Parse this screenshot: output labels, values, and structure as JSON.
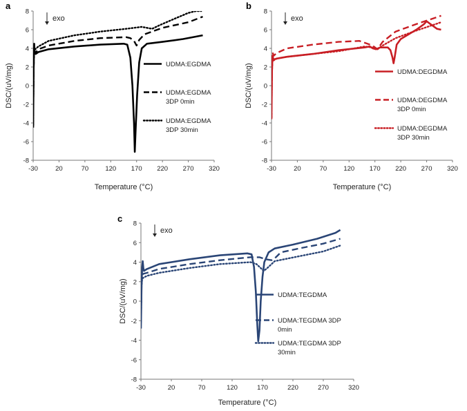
{
  "chart_data": [
    {
      "type": "line",
      "panel_label": "a",
      "annotation": "exo",
      "xlabel": "Temperature (°C)",
      "ylabel": "DSC/(uV/mg)",
      "xlim": [
        -30,
        320
      ],
      "ylim": [
        -8,
        8
      ],
      "xticks": [
        -30,
        20,
        70,
        120,
        170,
        220,
        270,
        320
      ],
      "yticks": [
        -8,
        -6,
        -4,
        -2,
        0,
        2,
        4,
        6,
        8
      ],
      "color": "#000000",
      "series": [
        {
          "name": "UDMA:EGDMA",
          "legend_lines": [
            "UDMA:EGDMA"
          ],
          "style": "solid",
          "points": [
            [
              -30,
              -4.5
            ],
            [
              -29,
              2
            ],
            [
              -28,
              4.5
            ],
            [
              -27,
              3.5
            ],
            [
              -25,
              3.4
            ],
            [
              -20,
              3.6
            ],
            [
              0,
              3.9
            ],
            [
              50,
              4.2
            ],
            [
              100,
              4.4
            ],
            [
              145,
              4.5
            ],
            [
              152,
              4.4
            ],
            [
              158,
              3
            ],
            [
              162,
              0
            ],
            [
              165,
              -4
            ],
            [
              166.5,
              -7.1
            ],
            [
              168,
              -5
            ],
            [
              171,
              -1
            ],
            [
              175,
              2.5
            ],
            [
              180,
              4
            ],
            [
              190,
              4.5
            ],
            [
              220,
              4.7
            ],
            [
              260,
              5
            ],
            [
              298,
              5.4
            ]
          ]
        },
        {
          "name": "UDMA:EGDMA 3DP 0min",
          "legend_lines": [
            "UDMA:EGDMA",
            "3DP 0min"
          ],
          "style": "dash",
          "points": [
            [
              -30,
              -4.3
            ],
            [
              -29,
              1.5
            ],
            [
              -28,
              3.9
            ],
            [
              -26,
              3.5
            ],
            [
              -20,
              3.9
            ],
            [
              0,
              4.3
            ],
            [
              50,
              4.8
            ],
            [
              100,
              5.1
            ],
            [
              150,
              5.2
            ],
            [
              158,
              5.1
            ],
            [
              165,
              4.8
            ],
            [
              170,
              4.3
            ],
            [
              175,
              4.9
            ],
            [
              185,
              5.5
            ],
            [
              220,
              6.2
            ],
            [
              270,
              6.8
            ],
            [
              298,
              7.4
            ]
          ]
        },
        {
          "name": "UDMA:EGDMA 3DP 30min",
          "legend_lines": [
            "UDMA:EGDMA",
            "3DP 30min"
          ],
          "style": "dot",
          "points": [
            [
              -30,
              -4.2
            ],
            [
              -29,
              2
            ],
            [
              -28,
              4.1
            ],
            [
              -26,
              3.9
            ],
            [
              -20,
              4.2
            ],
            [
              0,
              4.8
            ],
            [
              50,
              5.4
            ],
            [
              100,
              5.8
            ],
            [
              150,
              6.1
            ],
            [
              180,
              6.3
            ],
            [
              200,
              6.1
            ],
            [
              215,
              6.5
            ],
            [
              240,
              7.1
            ],
            [
              270,
              7.8
            ],
            [
              285,
              8
            ],
            [
              295,
              8
            ]
          ]
        }
      ]
    },
    {
      "type": "line",
      "panel_label": "b",
      "annotation": "exo",
      "xlabel": "Temperature (°C)",
      "ylabel": "DSC/(uV/mg)",
      "xlim": [
        -30,
        320
      ],
      "ylim": [
        -8,
        8
      ],
      "xticks": [
        -30,
        20,
        70,
        120,
        170,
        220,
        270,
        320
      ],
      "yticks": [
        -8,
        -6,
        -4,
        -2,
        0,
        2,
        4,
        6,
        8
      ],
      "color": "#c81e24",
      "series": [
        {
          "name": "UDMA:DEGDMA",
          "legend_lines": [
            "UDMA:DEGDMA"
          ],
          "style": "solid",
          "points": [
            [
              -30,
              -3.5
            ],
            [
              -29,
              1.5
            ],
            [
              -28,
              3.2
            ],
            [
              -26,
              2.8
            ],
            [
              -20,
              2.9
            ],
            [
              0,
              3.1
            ],
            [
              50,
              3.4
            ],
            [
              100,
              3.8
            ],
            [
              150,
              4.1
            ],
            [
              160,
              4.2
            ],
            [
              166,
              4
            ],
            [
              172,
              3.9
            ],
            [
              180,
              4.1
            ],
            [
              195,
              4.1
            ],
            [
              200,
              3.8
            ],
            [
              204,
              3
            ],
            [
              206,
              2.4
            ],
            [
              208,
              3
            ],
            [
              212,
              4.4
            ],
            [
              220,
              5
            ],
            [
              250,
              6
            ],
            [
              265,
              6.6
            ],
            [
              270,
              6.9
            ],
            [
              280,
              6.5
            ],
            [
              290,
              6.1
            ],
            [
              298,
              6
            ]
          ]
        },
        {
          "name": "UDMA:DEGDMA 3DP 0min",
          "legend_lines": [
            "UDMA:DEGDMA",
            "3DP 0min"
          ],
          "style": "dash",
          "points": [
            [
              -30,
              -3.6
            ],
            [
              -29,
              1.8
            ],
            [
              -28,
              3.6
            ],
            [
              -26,
              3.2
            ],
            [
              -20,
              3.5
            ],
            [
              0,
              4
            ],
            [
              50,
              4.4
            ],
            [
              100,
              4.7
            ],
            [
              140,
              4.8
            ],
            [
              165,
              4.3
            ],
            [
              175,
              3.9
            ],
            [
              185,
              4.7
            ],
            [
              210,
              5.8
            ],
            [
              250,
              6.6
            ],
            [
              298,
              7.5
            ]
          ]
        },
        {
          "name": "UDMA:DEGDMA 3DP 30min",
          "legend_lines": [
            "UDMA:DEGDMA",
            "3DP 30min"
          ],
          "style": "dot",
          "points": [
            [
              -30,
              -3.4
            ],
            [
              -29,
              1.5
            ],
            [
              -28,
              2.9
            ],
            [
              -26,
              2.7
            ],
            [
              -20,
              2.9
            ],
            [
              0,
              3.1
            ],
            [
              50,
              3.4
            ],
            [
              100,
              3.7
            ],
            [
              150,
              4.2
            ],
            [
              165,
              4.1
            ],
            [
              175,
              3.9
            ],
            [
              185,
              4.3
            ],
            [
              210,
              5.1
            ],
            [
              250,
              5.9
            ],
            [
              298,
              6.8
            ]
          ]
        }
      ]
    },
    {
      "type": "line",
      "panel_label": "c",
      "annotation": "exo",
      "xlabel": "Temperature (°C)",
      "ylabel": "DSC/(uV/mg)",
      "xlim": [
        -30,
        320
      ],
      "ylim": [
        -8,
        8
      ],
      "xticks": [
        -30,
        20,
        70,
        120,
        170,
        220,
        270,
        320
      ],
      "yticks": [
        -8,
        -6,
        -4,
        -2,
        0,
        2,
        4,
        6,
        8
      ],
      "color": "#2a4576",
      "series": [
        {
          "name": "UDMA:TEGDMA",
          "legend_lines": [
            "UDMA:TEGDMA"
          ],
          "style": "solid",
          "points": [
            [
              -30,
              -2.8
            ],
            [
              -29,
              1.5
            ],
            [
              -28,
              3.5
            ],
            [
              -27,
              4.1
            ],
            [
              -26,
              3.4
            ],
            [
              -25,
              3.1
            ],
            [
              -20,
              3.3
            ],
            [
              0,
              3.8
            ],
            [
              50,
              4.3
            ],
            [
              100,
              4.7
            ],
            [
              145,
              4.9
            ],
            [
              152,
              4.8
            ],
            [
              156,
              3.5
            ],
            [
              159,
              1
            ],
            [
              161.5,
              -2.5
            ],
            [
              163,
              -4.1
            ],
            [
              165,
              -3
            ],
            [
              167,
              0
            ],
            [
              170,
              2.5
            ],
            [
              173,
              4
            ],
            [
              180,
              5
            ],
            [
              190,
              5.4
            ],
            [
              220,
              5.8
            ],
            [
              260,
              6.4
            ],
            [
              290,
              7
            ],
            [
              298,
              7.3
            ]
          ]
        },
        {
          "name": "UDMA:TEGDMA 3DP 0min",
          "legend_lines": [
            "UDMA:TEGDMA 3DP",
            "0min"
          ],
          "style": "dash",
          "points": [
            [
              -30,
              -2.2
            ],
            [
              -29,
              1.5
            ],
            [
              -28,
              2.7
            ],
            [
              -26,
              2.8
            ],
            [
              -20,
              2.9
            ],
            [
              0,
              3.3
            ],
            [
              50,
              3.8
            ],
            [
              100,
              4.2
            ],
            [
              150,
              4.5
            ],
            [
              165,
              4.5
            ],
            [
              175,
              4.3
            ],
            [
              185,
              4.2
            ],
            [
              192,
              4.5
            ],
            [
              200,
              5
            ],
            [
              230,
              5.4
            ],
            [
              270,
              5.9
            ],
            [
              298,
              6.4
            ]
          ]
        },
        {
          "name": "UDMA:TEGDMA 3DP 30min",
          "legend_lines": [
            "UDMA:TEGDMA 3DP",
            "30min"
          ],
          "style": "dot",
          "points": [
            [
              -30,
              -2
            ],
            [
              -29,
              1.5
            ],
            [
              -28,
              2.3
            ],
            [
              -26,
              2.4
            ],
            [
              -20,
              2.6
            ],
            [
              0,
              2.9
            ],
            [
              50,
              3.4
            ],
            [
              100,
              3.8
            ],
            [
              150,
              4
            ],
            [
              160,
              3.8
            ],
            [
              167,
              3.4
            ],
            [
              172,
              3.1
            ],
            [
              178,
              3.4
            ],
            [
              190,
              4.1
            ],
            [
              230,
              4.6
            ],
            [
              270,
              5.1
            ],
            [
              298,
              5.7
            ]
          ]
        }
      ]
    }
  ]
}
